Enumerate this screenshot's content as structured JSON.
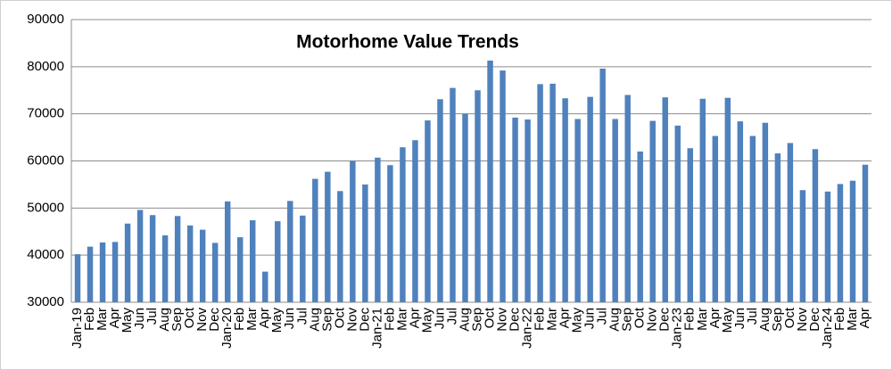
{
  "chart_data": {
    "type": "bar",
    "title": "Motorhome Value Trends",
    "categories": [
      "Jan-19",
      "Feb",
      "Mar",
      "Apr",
      "May",
      "Jun",
      "Jul",
      "Aug",
      "Sep",
      "Oct",
      "Nov",
      "Dec",
      "Jan-20",
      "Feb",
      "Mar",
      "Apr",
      "May",
      "Jun",
      "Jul",
      "Aug",
      "Sep",
      "Oct",
      "Nov",
      "Dec",
      "Jan-21",
      "Feb",
      "Mar",
      "Apr",
      "May",
      "Jun",
      "Jul",
      "Aug",
      "Sep",
      "Oct",
      "Nov",
      "Dec",
      "Jan-22",
      "Feb",
      "Mar",
      "Apr",
      "May",
      "Jun",
      "Jul",
      "Aug",
      "Sep",
      "Oct",
      "Nov",
      "Dec",
      "Jan-23",
      "Feb",
      "Mar",
      "Apr",
      "May",
      "Jun",
      "Jul",
      "Aug",
      "Sep",
      "Oct",
      "Nov",
      "Dec",
      "Jan-24",
      "Feb",
      "Mar",
      "Apr"
    ],
    "values": [
      40200,
      41800,
      42700,
      42800,
      46700,
      49600,
      48500,
      44200,
      48300,
      46300,
      45400,
      42600,
      51400,
      43800,
      47400,
      36500,
      47200,
      51500,
      48400,
      56200,
      57700,
      53600,
      60000,
      55000,
      60700,
      59100,
      62900,
      64400,
      68600,
      73100,
      75500,
      70000,
      75000,
      81300,
      79200,
      69200,
      68800,
      76300,
      76400,
      73300,
      68900,
      73600,
      79600,
      68900,
      74000,
      62000,
      68500,
      73500,
      67500,
      62700,
      73200,
      65300,
      73400,
      68400,
      65300,
      68100,
      61600,
      63800,
      53800,
      62500,
      53500,
      55100,
      55800,
      59200
    ],
    "color": "#4f81bd",
    "ylim": [
      30000,
      90000
    ],
    "yticks": [
      30000,
      40000,
      50000,
      60000,
      70000,
      80000,
      90000
    ],
    "grid": true
  }
}
